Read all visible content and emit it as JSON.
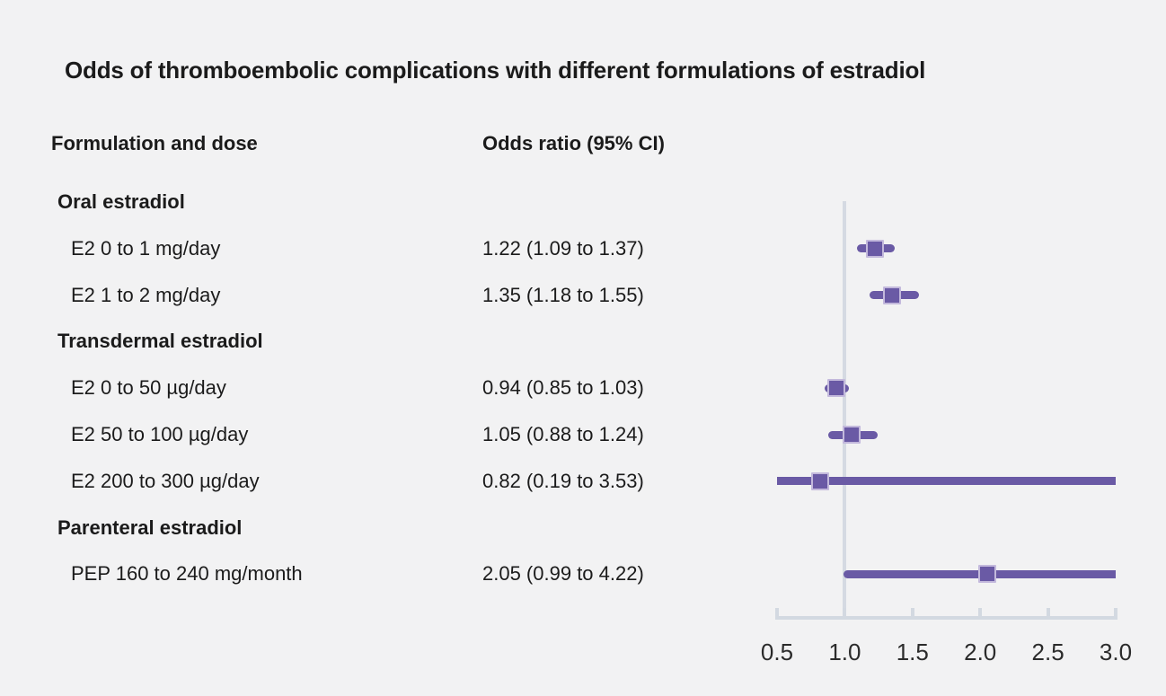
{
  "title": "Odds of thromboembolic complications with different formulations of estradiol",
  "columns": {
    "formulation": "Formulation and dose",
    "odds_ratio": "Odds ratio (95% CI)"
  },
  "chart_data": {
    "type": "forest",
    "title": "Odds of thromboembolic complications with different formulations of estradiol",
    "xlabel": "",
    "ylabel": "",
    "legend": "none",
    "grid": "off",
    "axis": {
      "min": 0.5,
      "max": 3.0,
      "tick_labels": [
        "0.5",
        "1.0",
        "1.5",
        "2.0",
        "2.5",
        "3.0"
      ],
      "tick_values": [
        0.5,
        1.0,
        1.5,
        2.0,
        2.5,
        3.0
      ],
      "reference_line": 1.0
    },
    "rows": [
      {
        "kind": "group",
        "label": "Oral estradiol"
      },
      {
        "kind": "item",
        "label": "E2 0 to 1 mg/day",
        "or_text": "1.22 (1.09 to 1.37)",
        "value": 1.22,
        "lo": 1.09,
        "hi": 1.37
      },
      {
        "kind": "item",
        "label": "E2 1 to 2 mg/day",
        "or_text": "1.35 (1.18 to 1.55)",
        "value": 1.35,
        "lo": 1.18,
        "hi": 1.55
      },
      {
        "kind": "group",
        "label": "Transdermal estradiol"
      },
      {
        "kind": "item",
        "label": "E2 0 to 50 µg/day",
        "or_text": "0.94 (0.85 to 1.03)",
        "value": 0.94,
        "lo": 0.85,
        "hi": 1.03
      },
      {
        "kind": "item",
        "label": "E2 50 to 100 µg/day",
        "or_text": "1.05 (0.88 to 1.24)",
        "value": 1.05,
        "lo": 0.88,
        "hi": 1.24
      },
      {
        "kind": "item",
        "label": "E2 200 to 300 µg/day",
        "or_text": "0.82 (0.19 to 3.53)",
        "value": 0.82,
        "lo": 0.19,
        "hi": 3.53
      },
      {
        "kind": "group",
        "label": "Parenteral estradiol"
      },
      {
        "kind": "item",
        "label": "PEP 160 to 240 mg/month",
        "or_text": "2.05 (0.99 to 4.22)",
        "value": 2.05,
        "lo": 0.99,
        "hi": 4.22
      }
    ],
    "colors": {
      "marker": "#6a5aa5",
      "marker_halo": "#c3b9dc",
      "axis": "#d3d9e1",
      "reference_line": "#d5dae2",
      "background": "#f2f2f3",
      "text": "#1b1b1b"
    }
  }
}
